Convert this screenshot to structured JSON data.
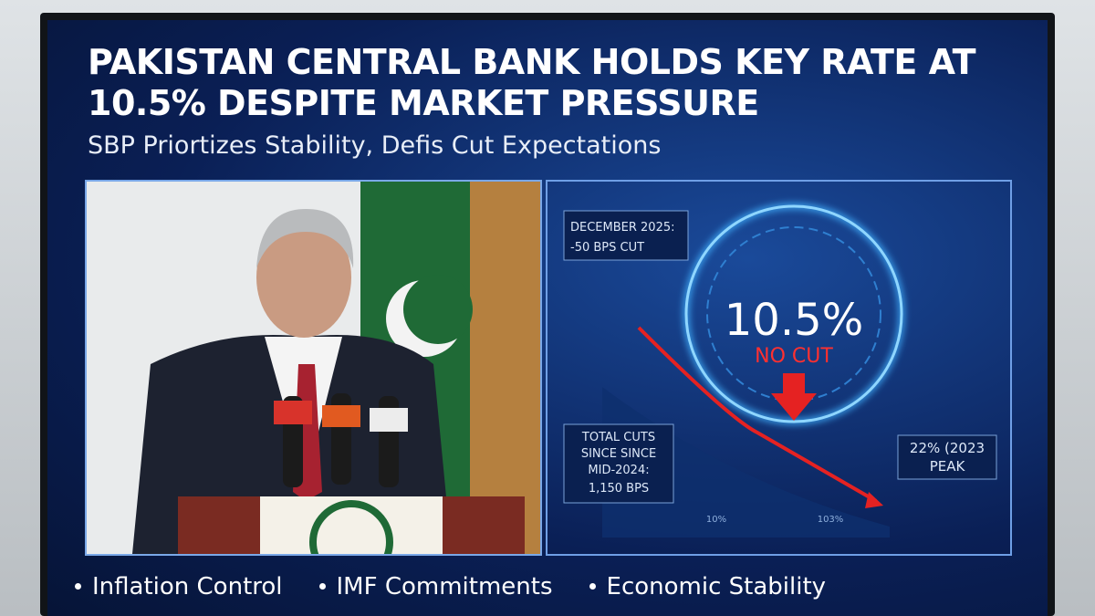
{
  "header": {
    "title_lines": [
      "PAKISTAN CENTRAL BANK HOLDS KEY RATE AT",
      "10.5% DESPITE MARKET PRESSURE"
    ],
    "subtitle": "SBP Priortizes Stability, Defis Cut Expectations"
  },
  "graphic": {
    "callout_top": [
      "DECEMBER 2025:",
      "-50 BPS CUT"
    ],
    "rate": "10.5%",
    "status": "NO CUT",
    "callout_left": [
      "TOTAL CUTS",
      "SINCE SINCE",
      "MID-2024:",
      "1,150 BPS"
    ],
    "callout_right": [
      "22% (2023",
      "PEAK"
    ],
    "axis_labels": [
      "10%",
      "103%"
    ]
  },
  "bullets": [
    "Inflation Control",
    "IMF Commitments",
    "Economic Stability"
  ]
}
